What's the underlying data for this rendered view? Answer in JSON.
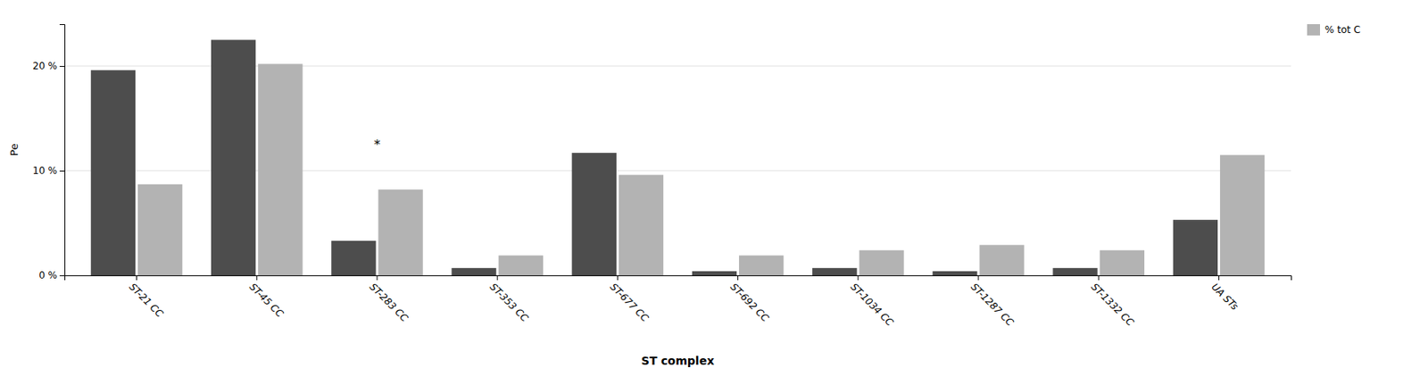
{
  "chart_data": {
    "type": "bar",
    "categories": [
      "ST-21 CC",
      "ST-45 CC",
      "ST-283 CC",
      "ST-353 CC",
      "ST-677 CC",
      "ST-692 CC",
      "ST-1034 CC",
      "ST-1287 CC",
      "ST-1332 CC",
      "UA STs"
    ],
    "series": [
      {
        "color": "#4d4d4d",
        "values": [
          19.6,
          22.5,
          3.3,
          0.7,
          11.7,
          0.4,
          0.7,
          0.4,
          0.7,
          5.3
        ]
      },
      {
        "name": "% tot C",
        "color": "#b3b3b3",
        "values": [
          8.7,
          20.2,
          8.2,
          1.9,
          9.6,
          1.9,
          2.4,
          2.9,
          2.4,
          11.5
        ]
      }
    ],
    "xlabel": "ST complex",
    "ylabel": "Pe",
    "ylim": [
      0,
      24
    ],
    "yticks": [
      {
        "value": 0,
        "label": "0 %"
      },
      {
        "value": 10,
        "label": "10 %"
      },
      {
        "value": 20,
        "label": "20 %"
      }
    ],
    "grid": true,
    "legend": "upper right",
    "annotations": [
      {
        "text": "*",
        "x": "ST-283 CC",
        "y": 12.5
      }
    ]
  }
}
